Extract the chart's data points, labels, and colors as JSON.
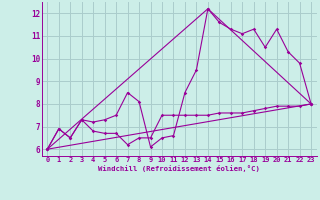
{
  "xlabel": "Windchill (Refroidissement éolien,°C)",
  "bg_color": "#cceee8",
  "grid_color": "#aacccc",
  "line_color": "#990099",
  "xlim": [
    -0.5,
    23.5
  ],
  "ylim": [
    5.7,
    12.5
  ],
  "xticks": [
    0,
    1,
    2,
    3,
    4,
    5,
    6,
    7,
    8,
    9,
    10,
    11,
    12,
    13,
    14,
    15,
    16,
    17,
    18,
    19,
    20,
    21,
    22,
    23
  ],
  "yticks": [
    6,
    7,
    8,
    9,
    10,
    11,
    12
  ],
  "series1_x": [
    0,
    1,
    2,
    3,
    4,
    5,
    6,
    7,
    8,
    9,
    10,
    11,
    12,
    13,
    14,
    15,
    16,
    17,
    18,
    19,
    20,
    21,
    22,
    23
  ],
  "series1_y": [
    6.0,
    6.9,
    6.5,
    7.3,
    6.8,
    6.7,
    6.7,
    6.2,
    6.5,
    6.5,
    7.5,
    7.5,
    7.5,
    7.5,
    7.5,
    7.6,
    7.6,
    7.6,
    7.7,
    7.8,
    7.9,
    7.9,
    7.9,
    8.0
  ],
  "series2_x": [
    0,
    1,
    2,
    3,
    4,
    5,
    6,
    7,
    8,
    9,
    10,
    11,
    12,
    13,
    14,
    15,
    16,
    17,
    18,
    19,
    20,
    21,
    22,
    23
  ],
  "series2_y": [
    6.0,
    6.9,
    6.5,
    7.3,
    7.2,
    7.3,
    7.5,
    8.5,
    8.1,
    6.1,
    6.5,
    6.6,
    8.5,
    9.5,
    12.2,
    11.6,
    11.3,
    11.1,
    11.3,
    10.5,
    11.3,
    10.3,
    9.8,
    8.0
  ],
  "series3_x": [
    0,
    23
  ],
  "series3_y": [
    6.0,
    8.0
  ],
  "series4_x": [
    0,
    14,
    23
  ],
  "series4_y": [
    6.0,
    12.2,
    8.0
  ]
}
